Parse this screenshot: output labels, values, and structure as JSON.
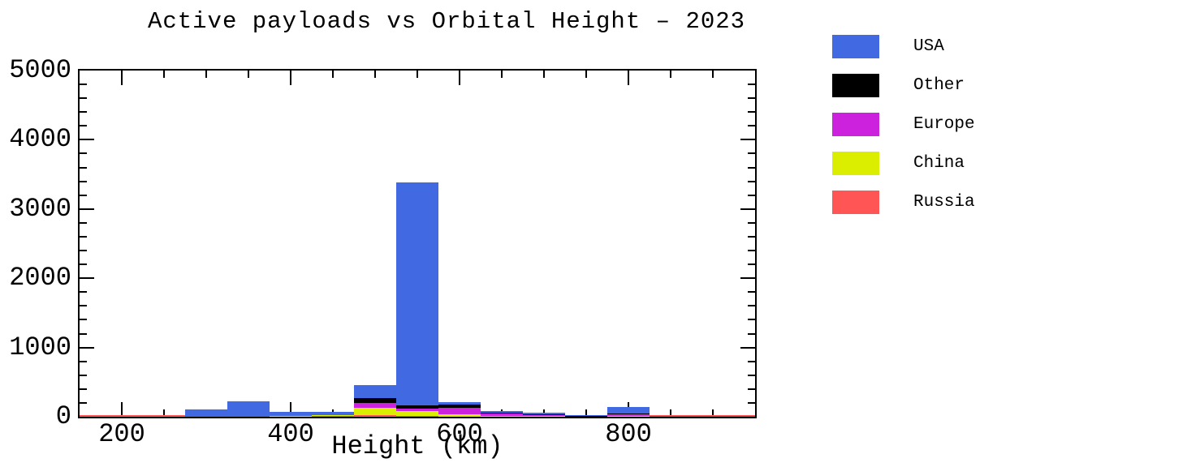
{
  "chart_data": {
    "type": "bar",
    "stacked": true,
    "title": "Active payloads vs Orbital Height – 2023",
    "xlabel": "Height (km)",
    "ylabel": "",
    "xlim": [
      150,
      950
    ],
    "ylim": [
      0,
      5000
    ],
    "x_major_ticks": [
      200,
      400,
      600,
      800
    ],
    "x_minor_step": 50,
    "y_major_ticks": [
      0,
      1000,
      2000,
      3000,
      4000,
      5000
    ],
    "y_minor_step": 200,
    "grid": false,
    "bin_width": 50,
    "bin_starts": [
      275,
      325,
      375,
      425,
      475,
      525,
      575,
      625,
      675,
      725,
      775,
      825,
      875,
      925
    ],
    "series": [
      {
        "name": "Russia",
        "color": "#FF5555",
        "values": [
          0,
          0,
          5,
          8,
          23,
          17,
          6,
          3,
          3,
          3,
          8,
          5,
          4,
          5
        ]
      },
      {
        "name": "China",
        "color": "#DCEE00",
        "values": [
          0,
          0,
          5,
          15,
          105,
          70,
          35,
          6,
          6,
          3,
          9,
          5,
          3,
          3
        ]
      },
      {
        "name": "Europe",
        "color": "#CC22DD",
        "values": [
          0,
          0,
          0,
          0,
          70,
          35,
          93,
          35,
          12,
          5,
          17,
          0,
          0,
          0
        ]
      },
      {
        "name": "Other",
        "color": "#000000",
        "values": [
          0,
          0,
          0,
          0,
          75,
          46,
          46,
          12,
          12,
          5,
          17,
          0,
          0,
          0
        ]
      },
      {
        "name": "USA",
        "color": "#4169E1",
        "values": [
          100,
          225,
          65,
          50,
          182,
          3212,
          35,
          23,
          30,
          13,
          93,
          5,
          3,
          3
        ]
      }
    ],
    "bin_totals": [
      100,
      225,
      75,
      73,
      455,
      3380,
      215,
      79,
      63,
      29,
      144,
      15,
      10,
      11
    ],
    "baseline_strip_color": "#FF5555",
    "legend": {
      "position": "outside-upper-right",
      "entries": [
        {
          "label": "USA",
          "color": "#4169E1"
        },
        {
          "label": "Other",
          "color": "#000000"
        },
        {
          "label": "Europe",
          "color": "#CC22DD"
        },
        {
          "label": "China",
          "color": "#DCEE00"
        },
        {
          "label": "Russia",
          "color": "#FF5555"
        }
      ]
    }
  }
}
